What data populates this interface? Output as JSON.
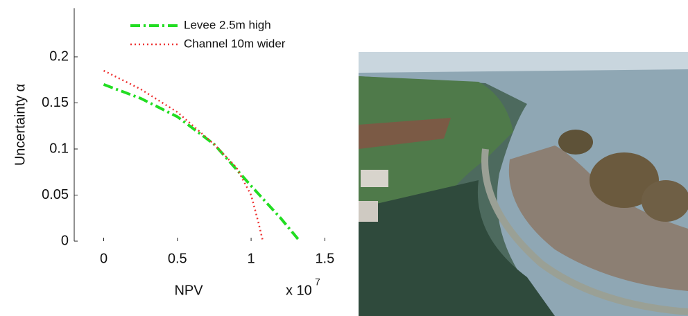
{
  "chart_data": {
    "type": "line",
    "xlabel": "NPV",
    "x_multiplier": "x 10",
    "x_exponent": "7",
    "ylabel": "Uncertainty α",
    "xlim": [
      -0.2,
      1.6
    ],
    "ylim": [
      0,
      0.25
    ],
    "xticks": [
      0,
      0.5,
      1,
      1.5
    ],
    "yticks": [
      0,
      0.05,
      0.1,
      0.15,
      0.2
    ],
    "legend": "upper right",
    "series": [
      {
        "name": "Levee 2.5m high",
        "color": "#22dd22",
        "style": "dashdot",
        "x": [
          0,
          0.25,
          0.5,
          0.75,
          1.0,
          1.2,
          1.33
        ],
        "values": [
          0.17,
          0.155,
          0.135,
          0.105,
          0.06,
          0.025,
          0
        ]
      },
      {
        "name": "Channel 10m wider",
        "color": "#ee3333",
        "style": "dotted",
        "x": [
          0,
          0.25,
          0.5,
          0.75,
          0.9,
          1.0,
          1.05,
          1.08
        ],
        "values": [
          0.185,
          0.165,
          0.14,
          0.105,
          0.08,
          0.05,
          0.02,
          0
        ]
      }
    ]
  }
}
